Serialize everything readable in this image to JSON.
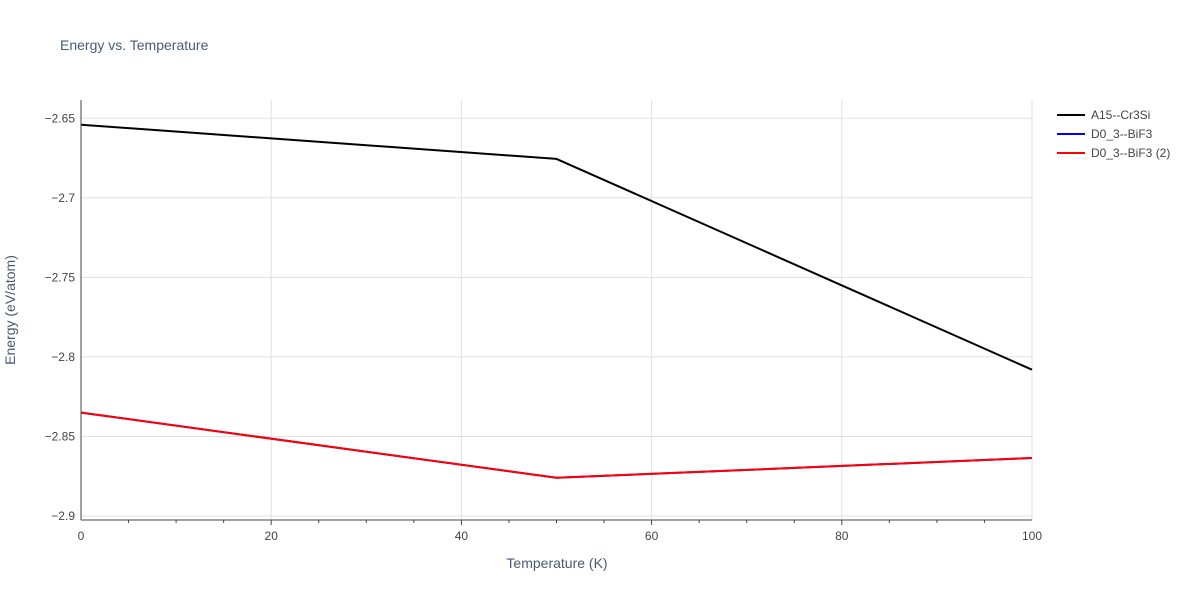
{
  "colors": {
    "grid": "#e1e1e1",
    "axis": "#444444",
    "text": "#4a5a73"
  },
  "chart_data": {
    "type": "line",
    "title": "Energy vs. Temperature",
    "xlabel": "Temperature (K)",
    "ylabel": "Energy (eV/atom)",
    "xlim": [
      0,
      100
    ],
    "ylim": [
      -2.9025,
      -2.6385
    ],
    "x_ticks": [
      0,
      20,
      40,
      60,
      80,
      100
    ],
    "x_tick_labels": [
      "0",
      "20",
      "40",
      "60",
      "80",
      "100"
    ],
    "y_ticks": [
      -2.65,
      -2.7,
      -2.75,
      -2.8,
      -2.85,
      -2.9
    ],
    "y_tick_labels": [
      "−2.65",
      "−2.7",
      "−2.75",
      "−2.8",
      "−2.85",
      "−2.9"
    ],
    "grid": true,
    "legend_position": "top-right",
    "series": [
      {
        "name": "A15--Cr3Si",
        "color": "#000000",
        "x": [
          0,
          50,
          100
        ],
        "y": [
          -2.654,
          -2.6755,
          -2.808
        ]
      },
      {
        "name": "D0_3--BiF3",
        "color": "#0000ff",
        "x": [
          0,
          50,
          100
        ],
        "y": [
          -2.835,
          -2.876,
          -2.8635
        ]
      },
      {
        "name": "D0_3--BiF3 (2)",
        "color": "#ff0000",
        "x": [
          0,
          50,
          100
        ],
        "y": [
          -2.835,
          -2.876,
          -2.8635
        ]
      }
    ]
  }
}
